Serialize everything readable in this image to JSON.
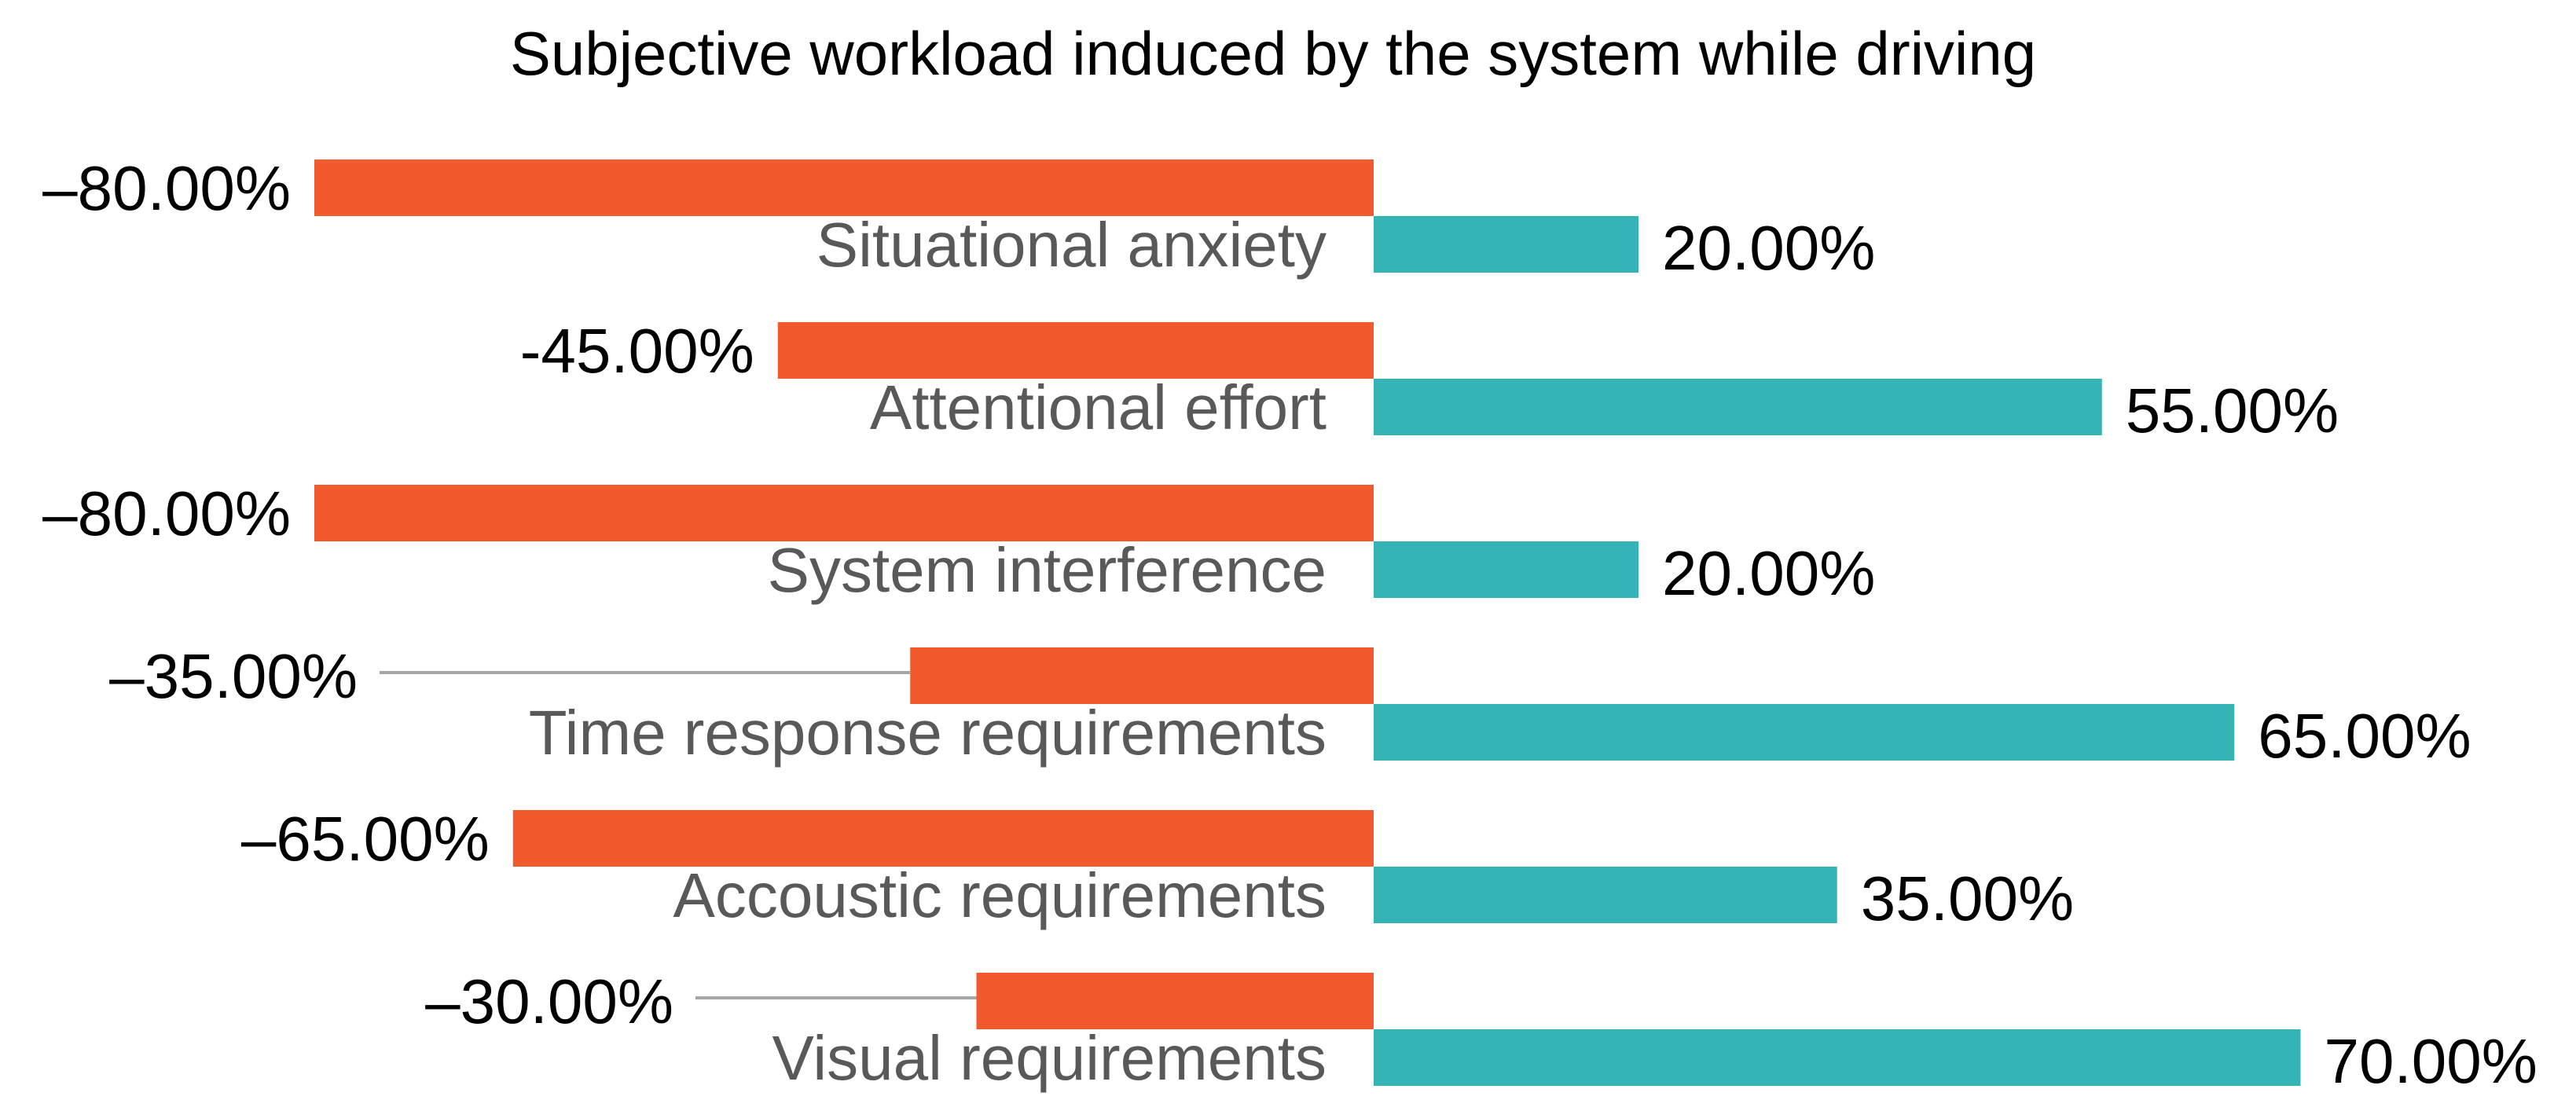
{
  "chart_data": {
    "type": "bar",
    "orientation": "horizontal",
    "title": "Subjective workload induced by the system while driving",
    "xlabel": "",
    "ylabel": "",
    "grid": false,
    "legend": "none",
    "xlim": [
      -100,
      100
    ],
    "categories": [
      "Situational anxiety",
      "Attentional effort",
      "System interference",
      "Time response requirements",
      "Accoustic requirements",
      "Visual requirements"
    ],
    "series": [
      {
        "color": "#F15A2C",
        "values": [
          -80,
          -45,
          -80,
          -35,
          -65,
          -30
        ],
        "labels": [
          "–80.00%",
          "-45.00%",
          "–80.00%",
          "–35.00%",
          "–65.00%",
          "–30.00%"
        ]
      },
      {
        "color": "#35B4B6",
        "values": [
          20,
          55,
          20,
          65,
          35,
          70
        ],
        "labels": [
          "20.00%",
          "55.00%",
          "20.00%",
          "65.00%",
          "35.00%",
          "70.00%"
        ]
      }
    ]
  }
}
